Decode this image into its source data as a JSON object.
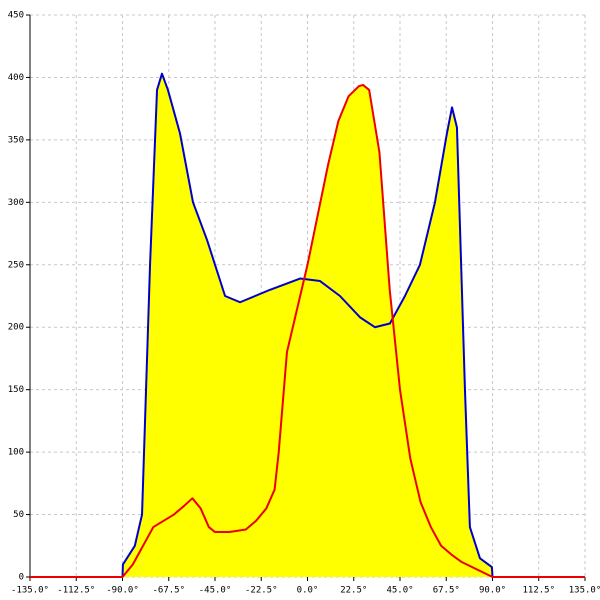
{
  "chart_data": {
    "type": "area",
    "xlim": [
      -135,
      135
    ],
    "ylim": [
      0,
      450
    ],
    "xticks": [
      {
        "value": -135,
        "label": "-135.0°"
      },
      {
        "value": -112.5,
        "label": "-112.5°"
      },
      {
        "value": -90,
        "label": "-90.0°"
      },
      {
        "value": -67.5,
        "label": "-67.5°"
      },
      {
        "value": -45,
        "label": "-45.0°"
      },
      {
        "value": -22.5,
        "label": "-22.5°"
      },
      {
        "value": 0,
        "label": "0.0°"
      },
      {
        "value": 22.5,
        "label": "22.5°"
      },
      {
        "value": 45,
        "label": "45.0°"
      },
      {
        "value": 67.5,
        "label": "67.5°"
      },
      {
        "value": 90,
        "label": "90.0°"
      },
      {
        "value": 112.5,
        "label": "112.5°"
      },
      {
        "value": 135,
        "label": "135.0°"
      }
    ],
    "yticks": [
      0,
      50,
      100,
      150,
      200,
      250,
      300,
      350,
      400,
      450
    ],
    "grid": true,
    "fill_color": "#ffff00",
    "series": [
      {
        "color": "#0000cc",
        "x": [
          -135,
          -90,
          -89.8,
          -84,
          -80.5,
          -76.6,
          -73.2,
          -70.8,
          -67.9,
          -62,
          -55.7,
          -48.9,
          -40.1,
          -32.8,
          -18.2,
          -3.6,
          6.1,
          15.8,
          25.5,
          32.8,
          40.1,
          47.4,
          54.7,
          62,
          67.8,
          70.3,
          72.7,
          76.6,
          79,
          83.9,
          89.7,
          90,
          135
        ],
        "values": [
          0,
          0,
          10,
          25,
          50,
          250,
          390,
          403,
          390,
          355,
          300,
          270,
          225,
          220,
          230,
          239,
          237,
          225,
          208,
          200,
          203,
          225,
          250,
          300,
          355,
          376,
          360,
          150,
          40,
          15,
          8,
          0,
          0
        ]
      },
      {
        "color": "#ee0000",
        "x": [
          -135,
          -90,
          -85,
          -80,
          -75,
          -70,
          -65,
          -60,
          -56,
          -52,
          -48,
          -45,
          -38,
          -30,
          -25,
          -20,
          -16,
          -14,
          -10,
          -5,
          0,
          5,
          10,
          15,
          20,
          25,
          27,
          30,
          35,
          40,
          45,
          50,
          55,
          60,
          65,
          70,
          75,
          80,
          85,
          90,
          135
        ],
        "values": [
          0,
          0,
          10,
          25,
          40,
          45,
          50,
          57,
          63,
          55,
          40,
          36,
          36,
          38,
          45,
          55,
          70,
          100,
          180,
          215,
          250,
          290,
          330,
          365,
          385,
          393,
          394,
          390,
          340,
          230,
          150,
          95,
          60,
          40,
          25,
          18,
          12,
          8,
          4,
          0,
          0
        ]
      }
    ]
  }
}
